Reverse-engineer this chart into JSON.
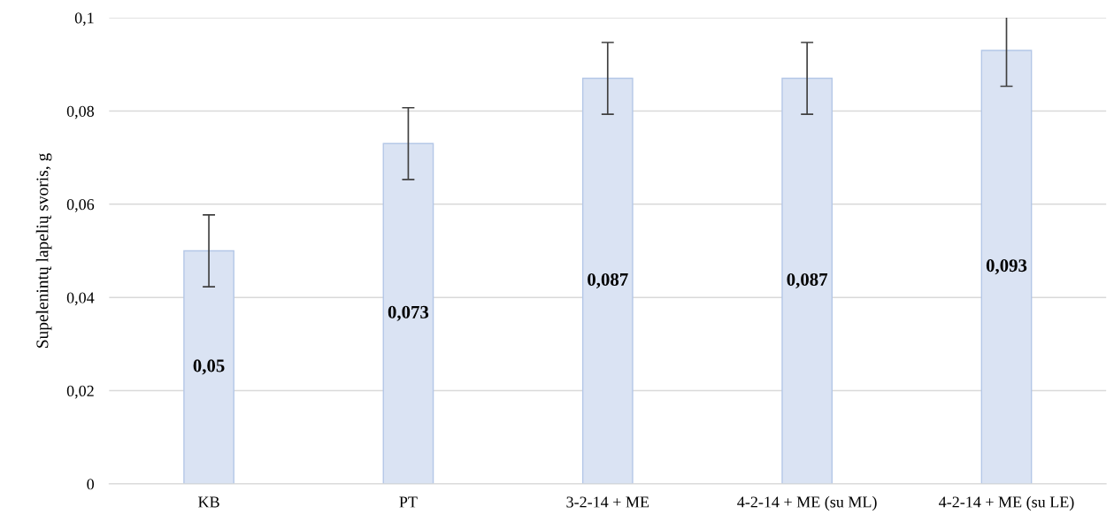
{
  "chart_data": {
    "type": "bar",
    "ylabel": "Supelenintų lapelių svoris, g",
    "categories": [
      "KB",
      "PT",
      "3-2-14 + ME",
      "4-2-14 + ME (su ML)",
      "4-2-14 + ME (su LE)"
    ],
    "values": [
      0.05,
      0.073,
      0.087,
      0.087,
      0.093
    ],
    "errors": [
      0.0077,
      0.0077,
      0.0077,
      0.0077,
      0.0077
    ],
    "value_labels": [
      "0,05",
      "0,073",
      "0,087",
      "0,087",
      "0,093"
    ],
    "color": "#dae3f3",
    "ylim": [
      0,
      0.1
    ],
    "yticks": [
      0,
      {
        "value": 0.02,
        "label": "0,02"
      },
      {
        "value": 0.04,
        "label": "0,04"
      },
      {
        "value": 0.06,
        "label": "0,06"
      },
      {
        "value": 0.08,
        "label": "0,08"
      },
      {
        "value": 0.1,
        "label": "0,1"
      }
    ],
    "grid": "y",
    "legend": false
  }
}
